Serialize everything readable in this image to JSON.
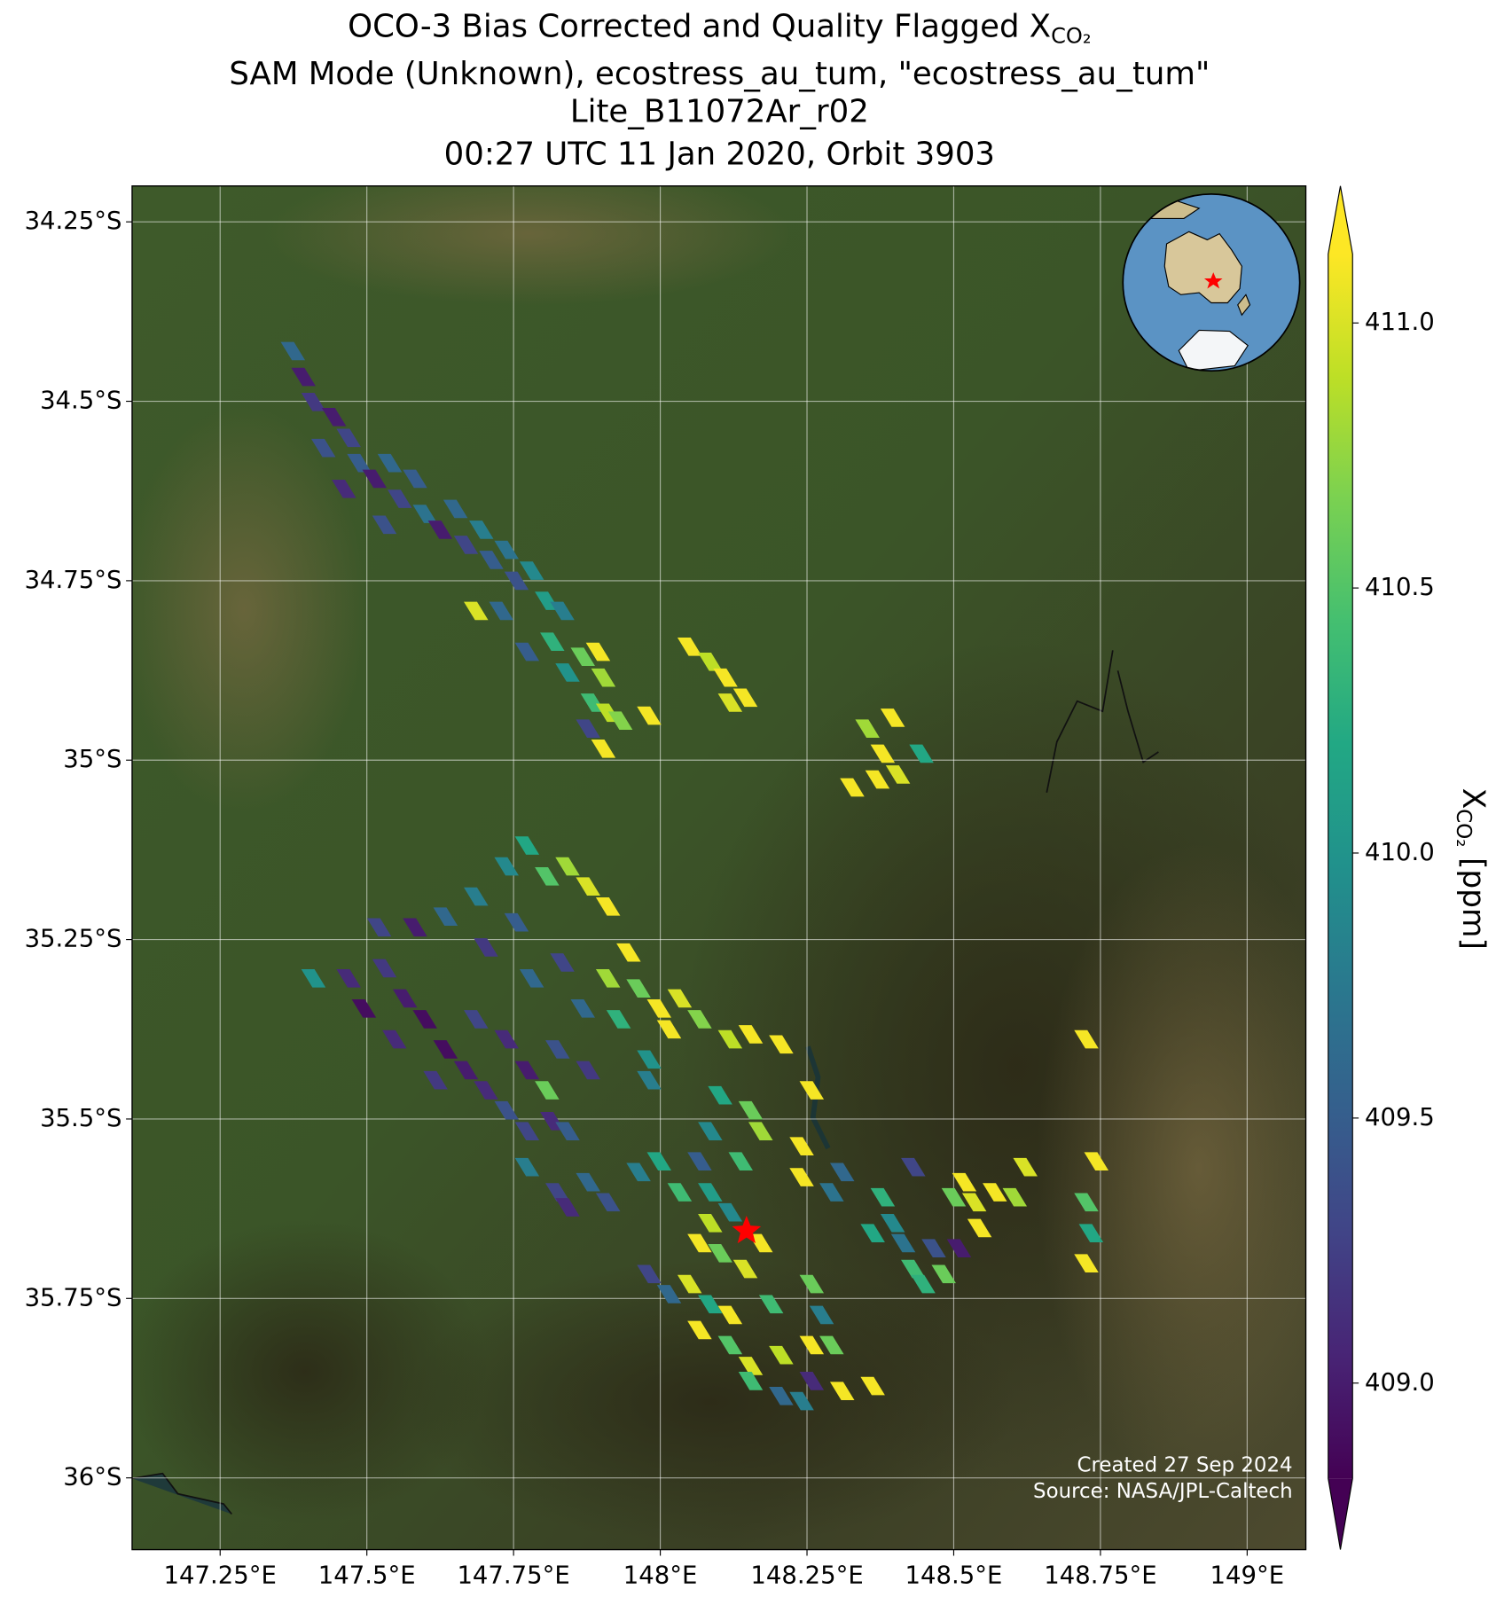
{
  "chart_data": {
    "type": "map",
    "title": [
      "OCO-3 Bias Corrected and Quality Flagged X",
      "SAM Mode (Unknown), ecostress_au_tum, \"ecostress_au_tum\"",
      "Lite_B11072Ar_r02",
      "00:27 UTC 11 Jan 2020, Orbit 3903"
    ],
    "title_subscript": "CO₂",
    "xlim": [
      147.1,
      149.1
    ],
    "ylim": [
      -36.1,
      -34.2
    ],
    "xticks": [
      {
        "value": 147.25,
        "label": "147.25°E"
      },
      {
        "value": 147.5,
        "label": "147.5°E"
      },
      {
        "value": 147.75,
        "label": "147.75°E"
      },
      {
        "value": 148,
        "label": "148°E"
      },
      {
        "value": 148.25,
        "label": "148.25°E"
      },
      {
        "value": 148.5,
        "label": "148.5°E"
      },
      {
        "value": 148.75,
        "label": "148.75°E"
      },
      {
        "value": 149,
        "label": "149°E"
      }
    ],
    "yticks": [
      {
        "value": -34.25,
        "label": "34.25°S"
      },
      {
        "value": -34.5,
        "label": "34.5°S"
      },
      {
        "value": -34.75,
        "label": "34.75°S"
      },
      {
        "value": -35,
        "label": "35°S"
      },
      {
        "value": -35.25,
        "label": "35.25°S"
      },
      {
        "value": -35.5,
        "label": "35.5°S"
      },
      {
        "value": -35.75,
        "label": "35.75°S"
      },
      {
        "value": -36,
        "label": "36°S"
      }
    ],
    "grid": true,
    "colormap": "viridis",
    "colorbar": {
      "lim": [
        408.82,
        411.13
      ],
      "ticks": [
        {
          "value": 409,
          "label": "409.0"
        },
        {
          "value": 409.5,
          "label": "409.5"
        },
        {
          "value": 410,
          "label": "410.0"
        },
        {
          "value": 410.5,
          "label": "410.5"
        },
        {
          "value": 411,
          "label": "411.0"
        }
      ],
      "label": "X",
      "label_subscript": "CO₂",
      "label_unit": "[ppm]"
    },
    "x": [
      147.374,
      147.392,
      147.409,
      147.444,
      147.426,
      147.469,
      147.487,
      147.461,
      147.513,
      147.539,
      147.556,
      147.582,
      147.599,
      147.53,
      147.625,
      147.651,
      147.669,
      147.695,
      147.712,
      147.738,
      147.755,
      147.781,
      147.807,
      147.833,
      147.729,
      147.686,
      147.773,
      147.816,
      147.842,
      147.868,
      147.894,
      147.885,
      147.903,
      147.911,
      147.877,
      147.903,
      147.932,
      147.981,
      148.05,
      148.085,
      148.111,
      148.119,
      148.145,
      148.353,
      148.379,
      148.396,
      148.405,
      148.37,
      148.445,
      148.327,
      147.409,
      147.469,
      147.53,
      147.495,
      147.565,
      147.599,
      147.547,
      147.634,
      147.669,
      147.617,
      147.703,
      147.738,
      147.773,
      147.816,
      147.842,
      147.686,
      147.738,
      147.773,
      147.825,
      147.877,
      147.807,
      147.521,
      147.582,
      147.634,
      147.686,
      147.703,
      147.755,
      147.738,
      147.773,
      147.807,
      147.842,
      147.877,
      147.911,
      147.781,
      147.833,
      147.868,
      147.911,
      147.946,
      147.929,
      147.963,
      147.998,
      148.033,
      148.015,
      148.067,
      147.981,
      148.119,
      148.154,
      148.206,
      147.981,
      148.102,
      148.154,
      148.085,
      148.171,
      148.137,
      148.067,
      148.241,
      148.258,
      147.773,
      147.825,
      147.877,
      147.842,
      147.911,
      147.963,
      147.998,
      148.033,
      148.085,
      148.085,
      148.119,
      148.067,
      148.102,
      148.145,
      148.171,
      147.981,
      148.015,
      148.05,
      148.085,
      148.119,
      148.189,
      148.258,
      148.275,
      148.067,
      148.119,
      148.154,
      148.206,
      148.258,
      148.292,
      148.154,
      148.206,
      148.258,
      148.31,
      148.362,
      148.241,
      148.292,
      148.31,
      148.241,
      148.379,
      148.396,
      148.362,
      148.414,
      148.431,
      148.466,
      148.448,
      148.483,
      148.431,
      148.509,
      148.518,
      148.535,
      148.57,
      148.604,
      148.622,
      148.544,
      148.5,
      148.726,
      148.743,
      148.726,
      148.734,
      148.726
    ],
    "y": [
      -34.43,
      -34.466,
      -34.501,
      -34.522,
      -34.565,
      -34.551,
      -34.586,
      -34.622,
      -34.608,
      -34.586,
      -34.636,
      -34.608,
      -34.657,
      -34.672,
      -34.679,
      -34.65,
      -34.7,
      -34.679,
      -34.721,
      -34.707,
      -34.75,
      -34.736,
      -34.778,
      -34.792,
      -34.792,
      -34.792,
      -34.849,
      -34.835,
      -34.878,
      -34.856,
      -34.849,
      -34.92,
      -34.885,
      -34.934,
      -34.956,
      -34.984,
      -34.945,
      -34.938,
      -34.842,
      -34.863,
      -34.885,
      -34.92,
      -34.913,
      -34.956,
      -34.991,
      -34.941,
      -35.02,
      -35.027,
      -34.991,
      -35.038,
      -35.304,
      -35.304,
      -35.29,
      -35.346,
      -35.332,
      -35.361,
      -35.389,
      -35.403,
      -35.432,
      -35.446,
      -35.46,
      -35.488,
      -35.517,
      -35.503,
      -35.517,
      -35.361,
      -35.389,
      -35.432,
      -35.403,
      -35.432,
      -35.46,
      -35.233,
      -35.233,
      -35.218,
      -35.19,
      -35.261,
      -35.226,
      -35.148,
      -35.119,
      -35.162,
      -35.148,
      -35.176,
      -35.204,
      -35.304,
      -35.282,
      -35.346,
      -35.304,
      -35.268,
      -35.361,
      -35.318,
      -35.346,
      -35.332,
      -35.375,
      -35.361,
      -35.417,
      -35.389,
      -35.382,
      -35.396,
      -35.446,
      -35.467,
      -35.488,
      -35.517,
      -35.517,
      -35.559,
      -35.559,
      -35.538,
      -35.46,
      -35.567,
      -35.602,
      -35.588,
      -35.623,
      -35.616,
      -35.574,
      -35.559,
      -35.602,
      -35.602,
      -35.645,
      -35.63,
      -35.673,
      -35.687,
      -35.709,
      -35.673,
      -35.716,
      -35.744,
      -35.73,
      -35.758,
      -35.773,
      -35.758,
      -35.73,
      -35.773,
      -35.794,
      -35.815,
      -35.844,
      -35.829,
      -35.815,
      -35.815,
      -35.865,
      -35.886,
      -35.865,
      -35.879,
      -35.872,
      -35.893,
      -35.602,
      -35.574,
      -35.581,
      -35.609,
      -35.645,
      -35.659,
      -35.673,
      -35.709,
      -35.68,
      -35.73,
      -35.716,
      -35.567,
      -35.68,
      -35.588,
      -35.616,
      -35.602,
      -35.609,
      -35.567,
      -35.652,
      -35.609,
      -35.389,
      -35.559,
      -35.616,
      -35.659,
      -35.701
    ],
    "values": [
      409.6,
      409.0,
      409.2,
      409.0,
      409.4,
      409.3,
      409.5,
      409.1,
      409.0,
      409.6,
      409.3,
      409.5,
      409.7,
      409.4,
      409.0,
      409.6,
      409.3,
      409.8,
      409.5,
      409.7,
      409.4,
      409.9,
      410.1,
      409.8,
      409.6,
      411.0,
      409.5,
      410.3,
      410.0,
      410.6,
      411.1,
      410.4,
      410.8,
      410.9,
      409.3,
      411.1,
      410.7,
      411.1,
      411.1,
      410.9,
      411.1,
      411.0,
      411.1,
      410.8,
      411.1,
      411.1,
      411.0,
      411.1,
      410.2,
      411.1,
      410.0,
      409.1,
      409.2,
      408.9,
      409.0,
      408.9,
      409.1,
      408.9,
      409.0,
      409.2,
      409.1,
      409.4,
      409.3,
      409.1,
      409.5,
      409.3,
      409.1,
      409.0,
      409.4,
      409.2,
      410.6,
      409.3,
      409.0,
      409.6,
      409.8,
      409.2,
      409.5,
      409.9,
      410.2,
      410.5,
      410.8,
      411.0,
      411.1,
      409.6,
      409.3,
      409.6,
      410.8,
      411.1,
      410.3,
      410.6,
      411.1,
      411.0,
      411.1,
      410.7,
      410.0,
      410.9,
      411.1,
      411.1,
      409.8,
      410.2,
      410.6,
      409.9,
      410.8,
      410.4,
      409.5,
      411.1,
      411.1,
      409.8,
      409.3,
      409.6,
      409.1,
      409.4,
      409.8,
      410.2,
      410.4,
      410.1,
      410.9,
      409.9,
      411.1,
      410.6,
      411.0,
      411.1,
      409.3,
      409.6,
      411.0,
      410.2,
      411.1,
      410.4,
      410.6,
      409.8,
      411.1,
      410.5,
      411.0,
      410.9,
      411.1,
      410.6,
      410.4,
      409.6,
      409.1,
      411.1,
      411.1,
      409.8,
      409.7,
      409.6,
      411.1,
      410.3,
      409.9,
      410.2,
      409.7,
      410.4,
      409.4,
      410.3,
      410.6,
      409.3,
      409.0,
      411.1,
      411.0,
      411.1,
      410.8,
      411.0,
      411.1,
      410.6,
      411.1,
      411.1,
      410.5,
      410.2,
      411.1
    ],
    "marker": {
      "x": 148.147,
      "y": -35.656,
      "color": "#ff0000"
    },
    "credits": [
      "Created 27 Sep 2024",
      "Source: NASA/JPL-Caltech"
    ]
  }
}
